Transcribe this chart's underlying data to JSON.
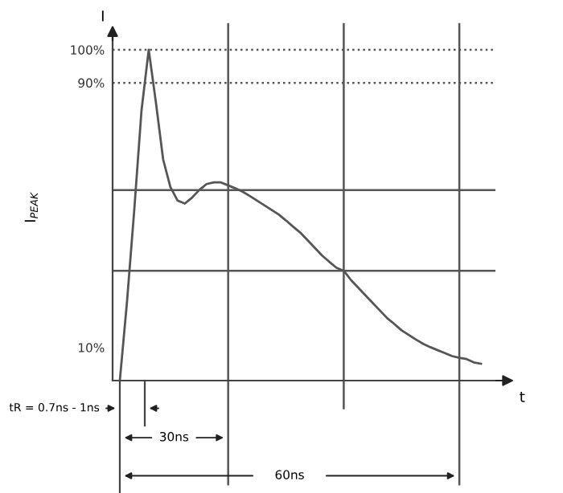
{
  "chart_data": {
    "type": "line",
    "ylabel": "I$_{PEAK}$",
    "xlabel": "t",
    "categories": [
      null,
      null,
      null,
      null,
      null,
      null,
      null,
      null,
      null,
      null,
      null,
      null,
      null,
      null,
      null,
      null,
      null,
      null,
      null,
      null,
      null,
      null,
      null,
      null,
      null,
      null,
      null,
      null,
      null,
      null,
      null,
      null,
      null,
      null,
      null,
      null,
      null,
      null,
      null,
      null,
      null,
      null,
      null,
      null,
      null,
      null,
      null,
      null,
      null,
      null,
      null,
      null
    ],
    "series": [
      {
        "color": "#555555",
        "values": [
          null,
          0,
          24,
          51.6,
          81.6,
          100,
          84,
          66.8,
          58.5,
          54.4,
          53.5,
          55.3,
          57.6,
          59.4,
          59.9,
          59.9,
          59.0,
          58.1,
          57.1,
          55.8,
          54.4,
          53.0,
          51.6,
          50.2,
          48.4,
          46.5,
          44.7,
          42.4,
          40.1,
          37.8,
          35.9,
          34.1,
          33.2,
          30.4,
          28.1,
          25.8,
          23.5,
          21.2,
          18.9,
          17.1,
          15.2,
          13.8,
          12.4,
          11.1,
          10.1,
          9.2,
          8.3,
          7.4,
          6.9,
          6.5,
          5.5,
          5.1
        ]
      }
    ],
    "ylim": [
      0,
      104.6
    ],
    "yticks": [
      {
        "value": 10,
        "label": "10%"
      },
      {
        "value": 90,
        "label": "90%"
      },
      {
        "value": 100,
        "label": "100%"
      }
    ],
    "tick_labels": "y",
    "grid": "x",
    "marker": "none",
    "line_style": "solid",
    "ref_lines": [
      {
        "axis": "y",
        "value": 100,
        "label": null,
        "line_style": "dotted",
        "color": "#555555"
      },
      {
        "axis": "y",
        "value": 90,
        "label": null,
        "line_style": "dotted",
        "color": "#555555"
      },
      {
        "axis": "y",
        "value": 57.6,
        "label": null,
        "line_style": "solid",
        "color": "#555555"
      },
      {
        "axis": "y",
        "value": 33.2,
        "label": null,
        "line_style": "solid",
        "color": "#555555"
      }
    ],
    "annotations": [
      "I",
      "tR = 0.7ns - 1ns",
      "30ns",
      "60ns"
    ]
  }
}
